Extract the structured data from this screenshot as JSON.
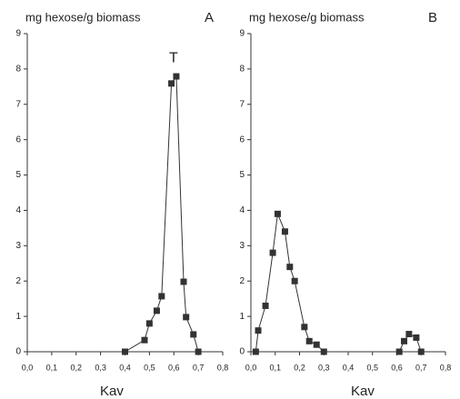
{
  "chart_data": [
    {
      "type": "line",
      "title": "mg hexose/g biomass",
      "panel_label": "A",
      "annotation": "T",
      "x_label": "Kav",
      "series": [
        {
          "color": "#333333",
          "x": [
            0.4,
            0.48,
            0.5,
            0.53,
            0.55,
            0.59,
            0.61,
            0.64,
            0.65,
            0.68,
            0.7
          ],
          "values": [
            0,
            0.33,
            0.8,
            1.16,
            1.57,
            7.59,
            7.79,
            1.98,
            0.98,
            0.49,
            0
          ]
        }
      ],
      "xlim": [
        0,
        0.8
      ],
      "ylim": [
        0,
        9
      ],
      "xticks": [
        {
          "value": 0,
          "label": "0,0"
        },
        {
          "value": 0.1,
          "label": "0,1"
        },
        {
          "value": 0.2,
          "label": "0,2"
        },
        {
          "value": 0.3,
          "label": "0,3"
        },
        {
          "value": 0.4,
          "label": "0,4"
        },
        {
          "value": 0.5,
          "label": "0,5"
        },
        {
          "value": 0.6,
          "label": "0,6"
        },
        {
          "value": 0.7,
          "label": "0,7"
        },
        {
          "value": 0.8,
          "label": "0,8"
        }
      ],
      "yticks": [
        0,
        1,
        2,
        3,
        4,
        5,
        6,
        7,
        8,
        9
      ]
    },
    {
      "type": "line",
      "title": "mg hexose/g biomass",
      "panel_label": "B",
      "x_label": "Kav",
      "series": [
        {
          "color": "#333333",
          "x": [
            0.02,
            0.03,
            0.06,
            0.09,
            0.11,
            0.14,
            0.16,
            0.18,
            0.22,
            0.24,
            0.27,
            0.3,
            null,
            0.61,
            0.63,
            0.65,
            0.68,
            0.7
          ],
          "values": [
            0,
            0.6,
            1.3,
            2.8,
            3.9,
            3.4,
            2.4,
            2.0,
            0.7,
            0.3,
            0.2,
            0,
            null,
            0,
            0.3,
            0.5,
            0.4,
            0
          ]
        }
      ],
      "xlim": [
        0,
        0.8
      ],
      "ylim": [
        0,
        9
      ],
      "xticks": [
        {
          "value": 0,
          "label": "0,0"
        },
        {
          "value": 0.1,
          "label": "0,1"
        },
        {
          "value": 0.2,
          "label": "0,2"
        },
        {
          "value": 0.3,
          "label": "0,3"
        },
        {
          "value": 0.4,
          "label": "0,4"
        },
        {
          "value": 0.5,
          "label": "0,5"
        },
        {
          "value": 0.6,
          "label": "0,6"
        },
        {
          "value": 0.7,
          "label": "0,7"
        },
        {
          "value": 0.8,
          "label": "0,8"
        }
      ],
      "yticks": [
        0,
        1,
        2,
        3,
        4,
        5,
        6,
        7,
        8,
        9
      ]
    }
  ]
}
